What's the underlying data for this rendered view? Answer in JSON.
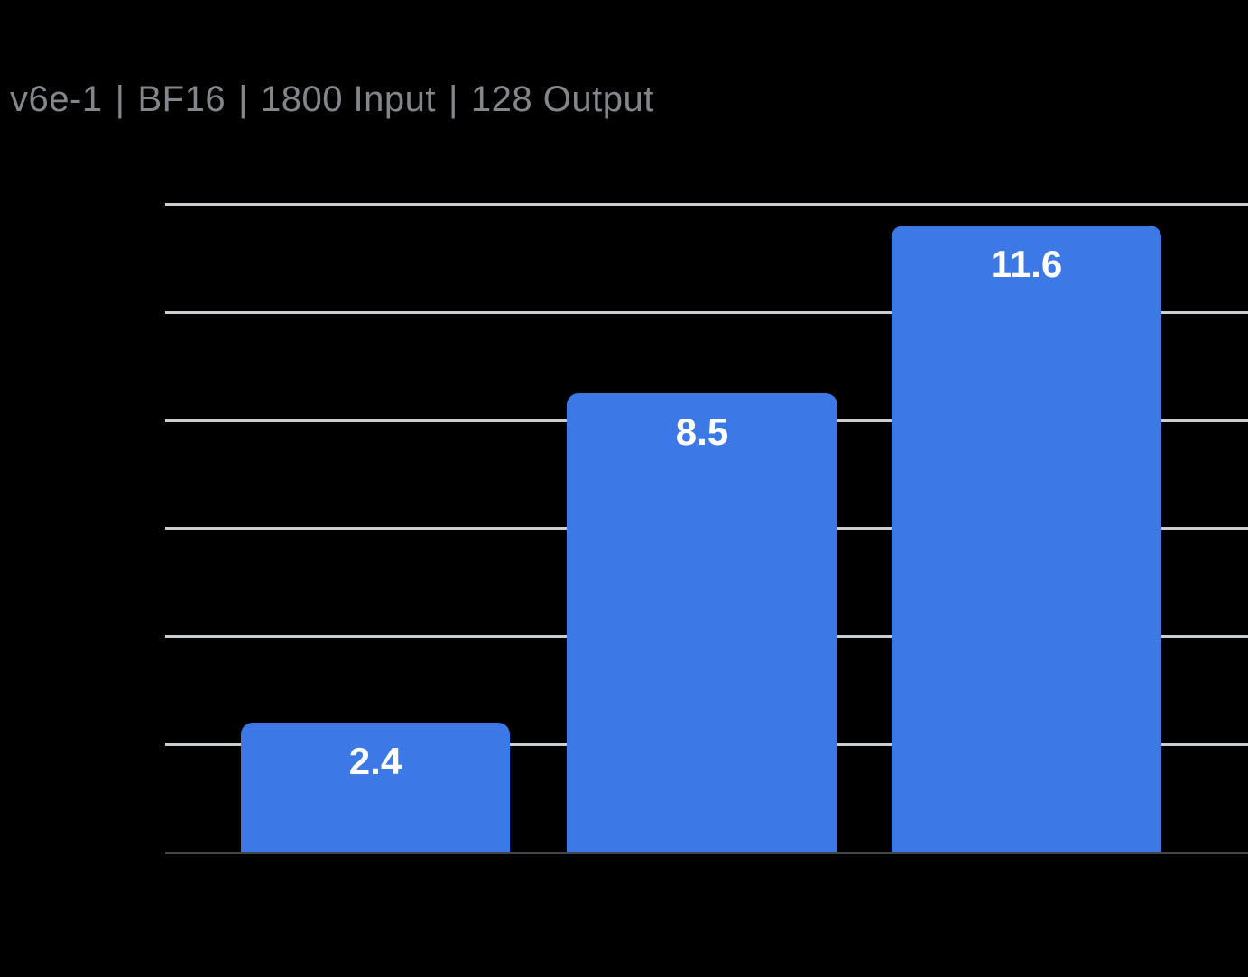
{
  "title": {
    "segments": [
      "v6e-1",
      "BF16",
      "1800 Input",
      "128 Output"
    ],
    "separator": "|",
    "full_text": "v6e-1 | BF16 | 1800 Input | 128 Output"
  },
  "colors": {
    "background": "#000000",
    "bar": "#3C78E6",
    "grid": "#C9CED5",
    "axis": "#43464B",
    "title": "#82878C",
    "label": "#FFFFFF"
  },
  "chart_data": {
    "type": "bar",
    "title": "v6e-1 | BF16 | 1800 Input | 128 Output",
    "values": [
      2.4,
      8.5,
      11.6
    ],
    "bar_labels": [
      "2.4",
      "8.5",
      "11.6"
    ],
    "xlabel": "",
    "ylabel": "",
    "ylim": [
      0,
      12
    ],
    "gridline_step": 2,
    "grid": true,
    "x_tick_labels_visible": false,
    "y_tick_labels_visible": false,
    "legend": false,
    "value_labels_inside_bars": true
  }
}
